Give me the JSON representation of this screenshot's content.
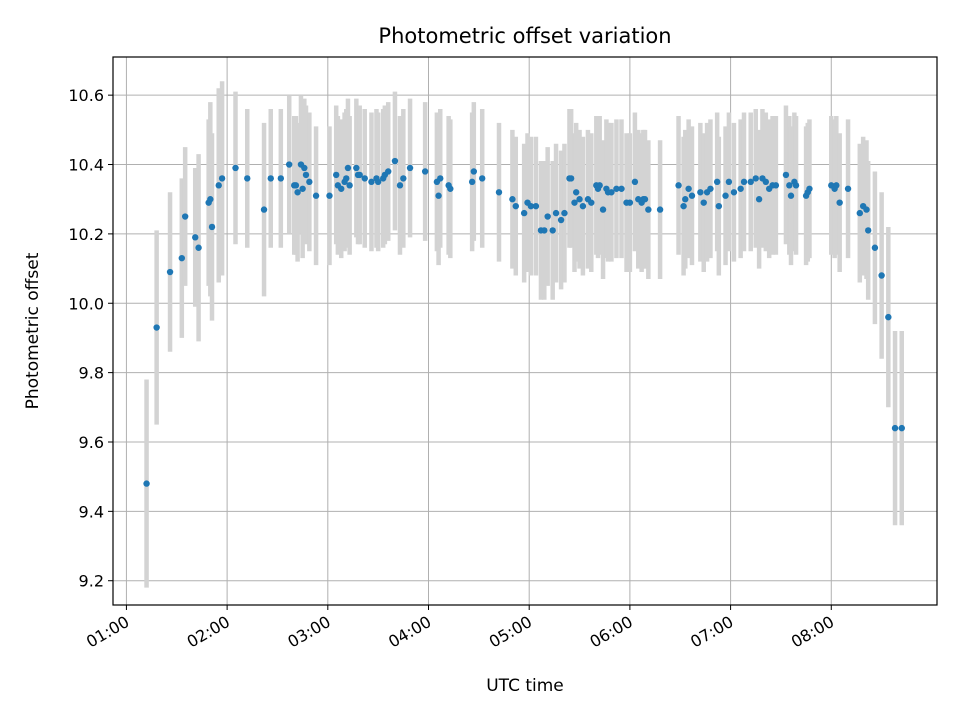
{
  "chart_data": {
    "type": "scatter",
    "title": "Photometric offset variation",
    "xlabel": "UTC time",
    "ylabel": "Photometric offset",
    "x_tick_labels": [
      "01:00",
      "02:00",
      "03:00",
      "04:00",
      "05:00",
      "06:00",
      "07:00",
      "08:00"
    ],
    "y_tick_labels": [
      "9.2",
      "9.4",
      "9.6",
      "9.8",
      "10.0",
      "10.2",
      "10.4",
      "10.6"
    ],
    "xlim": [
      "00:52",
      "09:03"
    ],
    "ylim": [
      9.13,
      10.71
    ],
    "grid": true,
    "point_color": "#1f77b4",
    "errorbar_color": "#d3d3d3",
    "series": [
      {
        "x": [
          "01:12",
          "01:18",
          "01:26",
          "01:33",
          "01:35",
          "01:41",
          "01:43",
          "01:49",
          "01:50",
          "01:51",
          "01:55",
          "01:57",
          "02:05",
          "02:12",
          "02:22",
          "02:26",
          "02:32",
          "02:37",
          "02:40",
          "02:41",
          "02:42",
          "02:44",
          "02:45",
          "02:46",
          "02:47",
          "02:49",
          "02:53",
          "03:01",
          "03:05",
          "03:06",
          "03:08",
          "03:10",
          "03:11",
          "03:12",
          "03:13",
          "03:17",
          "03:18",
          "03:19",
          "03:22",
          "03:26",
          "03:29",
          "03:30",
          "03:33",
          "03:34",
          "03:36",
          "03:40",
          "03:43",
          "03:45",
          "03:49",
          "03:58",
          "04:05",
          "04:06",
          "04:07",
          "04:12",
          "04:13",
          "04:26",
          "04:27",
          "04:32",
          "04:42",
          "04:50",
          "04:52",
          "04:57",
          "04:59",
          "05:01",
          "05:04",
          "05:07",
          "05:09",
          "05:11",
          "05:14",
          "05:16",
          "05:19",
          "05:21",
          "05:24",
          "05:25",
          "05:27",
          "05:28",
          "05:30",
          "05:32",
          "05:35",
          "05:37",
          "05:40",
          "05:41",
          "05:42",
          "05:44",
          "05:46",
          "05:47",
          "05:49",
          "05:52",
          "05:55",
          "05:58",
          "06:00",
          "06:03",
          "06:05",
          "06:07",
          "06:08",
          "06:09",
          "06:11",
          "06:18",
          "06:29",
          "06:32",
          "06:33",
          "06:35",
          "06:37",
          "06:42",
          "06:44",
          "06:46",
          "06:48",
          "06:52",
          "06:53",
          "06:57",
          "06:59",
          "07:02",
          "07:06",
          "07:08",
          "07:12",
          "07:15",
          "07:17",
          "07:19",
          "07:21",
          "07:23",
          "07:25",
          "07:27",
          "07:33",
          "07:35",
          "07:36",
          "07:38",
          "07:39",
          "07:45",
          "07:46",
          "07:47",
          "08:00",
          "08:02",
          "08:03",
          "08:05",
          "08:10",
          "08:17",
          "08:19",
          "08:21",
          "08:22",
          "08:26",
          "08:30",
          "08:34",
          "08:38",
          "08:42"
        ],
        "y": [
          9.48,
          9.93,
          10.09,
          10.13,
          10.25,
          10.19,
          10.16,
          10.29,
          10.3,
          10.22,
          10.34,
          10.36,
          10.39,
          10.36,
          10.27,
          10.36,
          10.36,
          10.4,
          10.34,
          10.34,
          10.32,
          10.4,
          10.33,
          10.39,
          10.37,
          10.35,
          10.31,
          10.31,
          10.37,
          10.34,
          10.33,
          10.35,
          10.36,
          10.39,
          10.34,
          10.39,
          10.37,
          10.37,
          10.36,
          10.35,
          10.36,
          10.35,
          10.36,
          10.37,
          10.38,
          10.41,
          10.34,
          10.36,
          10.39,
          10.38,
          10.35,
          10.31,
          10.36,
          10.34,
          10.33,
          10.35,
          10.38,
          10.36,
          10.32,
          10.3,
          10.28,
          10.26,
          10.29,
          10.28,
          10.28,
          10.21,
          10.21,
          10.25,
          10.21,
          10.26,
          10.24,
          10.26,
          10.36,
          10.36,
          10.29,
          10.32,
          10.3,
          10.28,
          10.3,
          10.29,
          10.34,
          10.33,
          10.34,
          10.27,
          10.33,
          10.32,
          10.32,
          10.33,
          10.33,
          10.29,
          10.29,
          10.35,
          10.3,
          10.29,
          10.3,
          10.3,
          10.27,
          10.27,
          10.34,
          10.28,
          10.3,
          10.33,
          10.31,
          10.32,
          10.29,
          10.32,
          10.33,
          10.35,
          10.28,
          10.31,
          10.35,
          10.32,
          10.33,
          10.35,
          10.35,
          10.36,
          10.3,
          10.36,
          10.35,
          10.33,
          10.34,
          10.34,
          10.37,
          10.34,
          10.31,
          10.35,
          10.34,
          10.31,
          10.32,
          10.33,
          10.34,
          10.33,
          10.34,
          10.29,
          10.33,
          10.26,
          10.28,
          10.27,
          10.21,
          10.16,
          10.08,
          9.96,
          9.64,
          9.64
        ],
        "yerr": [
          0.3,
          0.28,
          0.23,
          0.23,
          0.2,
          0.2,
          0.27,
          0.24,
          0.28,
          0.27,
          0.28,
          0.28,
          0.22,
          0.2,
          0.25,
          0.2,
          0.2,
          0.2,
          0.2,
          0.2,
          0.2,
          0.2,
          0.2,
          0.2,
          0.2,
          0.2,
          0.2,
          0.2,
          0.2,
          0.2,
          0.2,
          0.2,
          0.2,
          0.2,
          0.2,
          0.2,
          0.2,
          0.2,
          0.2,
          0.2,
          0.2,
          0.2,
          0.2,
          0.2,
          0.2,
          0.2,
          0.2,
          0.2,
          0.2,
          0.2,
          0.2,
          0.2,
          0.2,
          0.2,
          0.2,
          0.2,
          0.2,
          0.2,
          0.2,
          0.2,
          0.2,
          0.2,
          0.2,
          0.2,
          0.2,
          0.2,
          0.2,
          0.2,
          0.2,
          0.2,
          0.2,
          0.2,
          0.2,
          0.2,
          0.2,
          0.2,
          0.2,
          0.2,
          0.2,
          0.2,
          0.2,
          0.2,
          0.2,
          0.2,
          0.2,
          0.2,
          0.2,
          0.2,
          0.2,
          0.2,
          0.2,
          0.2,
          0.2,
          0.2,
          0.2,
          0.2,
          0.2,
          0.2,
          0.2,
          0.2,
          0.2,
          0.2,
          0.2,
          0.2,
          0.2,
          0.2,
          0.2,
          0.2,
          0.2,
          0.2,
          0.2,
          0.2,
          0.2,
          0.2,
          0.2,
          0.2,
          0.2,
          0.2,
          0.2,
          0.2,
          0.2,
          0.2,
          0.2,
          0.2,
          0.2,
          0.2,
          0.2,
          0.2,
          0.2,
          0.2,
          0.2,
          0.2,
          0.2,
          0.2,
          0.2,
          0.2,
          0.2,
          0.2,
          0.2,
          0.22,
          0.24,
          0.26,
          0.28,
          0.28
        ]
      }
    ]
  }
}
